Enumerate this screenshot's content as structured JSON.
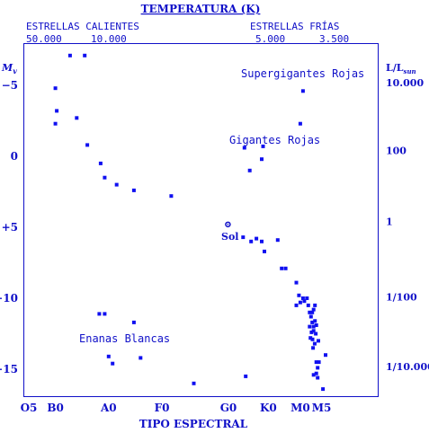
{
  "colors": {
    "ink": "#1010c8",
    "points": "#1010f0",
    "background": "#ffffff"
  },
  "header": {
    "title": "TEMPERATURA (K)",
    "hot_label": "ESTRELLAS CALIENTES",
    "cold_label": "ESTRELLAS FRÍAS",
    "temps": [
      "50.000",
      "10.000",
      "5.000",
      "3.500"
    ]
  },
  "left_axis": {
    "label_main": "M",
    "label_sub": "v",
    "ticks": [
      "−5",
      "0",
      "+5",
      "+10",
      "+15"
    ]
  },
  "right_axis": {
    "label_main": "L/L",
    "label_sub": "sun",
    "ticks": [
      "10.000",
      "100",
      "1",
      "1/100",
      "1/10.000"
    ]
  },
  "bottom_axis": {
    "label": "TIPO ESPECTRAL",
    "ticks": [
      "O5",
      "B0",
      "A0",
      "F0",
      "G0",
      "K0",
      "M0",
      "M5"
    ]
  },
  "annotations": {
    "supergiants": "Supergigantes Rojas",
    "giants": "Gigantes Rojas",
    "sun": "Sol",
    "white_dwarfs": "Enanas Blancas"
  },
  "chart_data": {
    "type": "scatter",
    "title": "TEMPERATURA (K)",
    "xlabel": "TIPO ESPECTRAL",
    "ylabel": "Mv",
    "y2label": "L/Lsun",
    "xlim": [
      0,
      11.1
    ],
    "ylim": [
      -8,
      17
    ],
    "y_inverted": true,
    "x_encoding": "spectral class index: O5=0, B0=1, A0=3, F0=5, G0=7.5, K0=9, M0=10.2, M5=11",
    "grid": false,
    "legend": "none",
    "sun": {
      "x": 7.48,
      "y": 4.8
    },
    "series": [
      {
        "name": "main-sequence",
        "points": [
          [
            1.0,
            -4.8
          ],
          [
            1.05,
            -3.2
          ],
          [
            1.0,
            -2.3
          ],
          [
            1.8,
            -2.7
          ],
          [
            2.2,
            -0.8
          ],
          [
            2.7,
            0.5
          ],
          [
            2.85,
            1.5
          ],
          [
            3.3,
            2.0
          ],
          [
            3.95,
            2.4
          ],
          [
            5.35,
            2.8
          ],
          [
            8.05,
            5.7
          ],
          [
            8.35,
            6.0
          ],
          [
            8.55,
            5.8
          ],
          [
            8.75,
            6.0
          ],
          [
            8.85,
            6.7
          ],
          [
            9.35,
            5.9
          ],
          [
            9.5,
            7.9
          ],
          [
            9.65,
            7.9
          ],
          [
            10.05,
            8.9
          ],
          [
            10.15,
            9.8
          ],
          [
            10.05,
            10.5
          ],
          [
            10.2,
            10.3
          ],
          [
            10.3,
            10.0
          ],
          [
            10.35,
            10.2
          ],
          [
            10.45,
            10.0
          ],
          [
            10.5,
            10.5
          ],
          [
            10.55,
            11.0
          ],
          [
            10.6,
            11.3
          ],
          [
            10.7,
            10.8
          ],
          [
            10.75,
            11.6
          ],
          [
            10.8,
            11.9
          ],
          [
            10.65,
            11.7
          ],
          [
            10.55,
            12.0
          ],
          [
            10.62,
            12.4
          ],
          [
            10.7,
            12.3
          ],
          [
            10.78,
            12.5
          ],
          [
            10.58,
            12.8
          ],
          [
            10.66,
            12.9
          ],
          [
            10.74,
            13.2
          ],
          [
            10.68,
            13.5
          ],
          [
            10.88,
            13.0
          ],
          [
            10.8,
            14.5
          ],
          [
            10.85,
            14.9
          ],
          [
            10.9,
            14.5
          ],
          [
            10.8,
            15.3
          ],
          [
            10.7,
            15.4
          ],
          [
            10.85,
            15.6
          ],
          [
            11.15,
            14.0
          ],
          [
            11.05,
            16.4
          ],
          [
            10.75,
            10.5
          ],
          [
            10.65,
            11.0
          ],
          [
            10.7,
            12.0
          ]
        ]
      },
      {
        "name": "giants",
        "points": [
          [
            8.1,
            -0.6
          ],
          [
            8.3,
            1.0
          ],
          [
            8.75,
            0.2
          ],
          [
            8.8,
            -0.7
          ]
        ]
      },
      {
        "name": "supergiants",
        "points": [
          [
            10.3,
            -4.6
          ],
          [
            10.2,
            -2.3
          ]
        ]
      },
      {
        "name": "white-dwarfs",
        "points": [
          [
            1.55,
            -7.1
          ],
          [
            2.1,
            -7.1
          ],
          [
            2.65,
            11.1
          ],
          [
            2.85,
            11.1
          ],
          [
            3.95,
            11.7
          ],
          [
            3.0,
            14.1
          ],
          [
            3.15,
            14.6
          ],
          [
            4.2,
            14.2
          ],
          [
            6.2,
            16.0
          ],
          [
            8.15,
            15.5
          ]
        ]
      }
    ]
  }
}
